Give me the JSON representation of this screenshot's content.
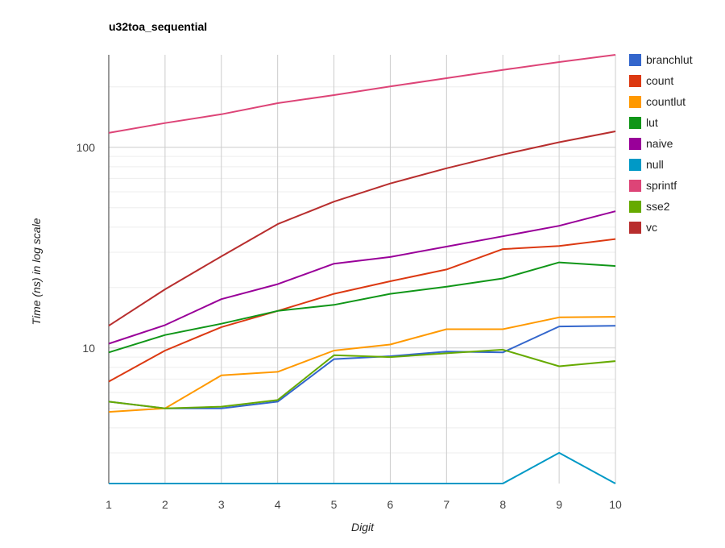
{
  "chart_data": {
    "type": "line",
    "title": "u32toa_sequential",
    "xlabel": "Digit",
    "ylabel": "Time (ns) in log scale",
    "yscale": "log",
    "ylim": [
      2.11,
      289
    ],
    "xlim": [
      1,
      10
    ],
    "x": [
      1,
      2,
      3,
      4,
      5,
      6,
      7,
      8,
      9,
      10
    ],
    "y_ticks": [
      10,
      100
    ],
    "y_tick_labels": [
      "10",
      "100"
    ],
    "x_tick_labels": [
      "1",
      "2",
      "3",
      "4",
      "5",
      "6",
      "7",
      "8",
      "9",
      "10"
    ],
    "grid": true,
    "legend_position": "right",
    "series": [
      {
        "name": "branchlut",
        "color": "#3366cc",
        "values": [
          5.4,
          5.0,
          5.0,
          5.4,
          8.8,
          9.1,
          9.6,
          9.5,
          12.8,
          12.9
        ]
      },
      {
        "name": "count",
        "color": "#dc3912",
        "values": [
          6.8,
          9.7,
          12.7,
          15.3,
          18.6,
          21.5,
          24.6,
          31.1,
          32.2,
          34.9
        ]
      },
      {
        "name": "countlut",
        "color": "#ff9900",
        "values": [
          4.8,
          5.0,
          7.3,
          7.6,
          9.7,
          10.4,
          12.4,
          12.4,
          14.2,
          14.3
        ]
      },
      {
        "name": "lut",
        "color": "#109618",
        "values": [
          9.5,
          11.6,
          13.2,
          15.3,
          16.4,
          18.6,
          20.2,
          22.2,
          26.7,
          25.6
        ]
      },
      {
        "name": "naive",
        "color": "#990099",
        "values": [
          10.5,
          13.0,
          17.5,
          20.8,
          26.3,
          28.4,
          32.0,
          36.0,
          40.6,
          48.0
        ]
      },
      {
        "name": "null",
        "color": "#0099c6",
        "values": [
          2.11,
          2.11,
          2.11,
          2.11,
          2.11,
          2.11,
          2.11,
          2.11,
          3.0,
          2.11
        ]
      },
      {
        "name": "sprintf",
        "color": "#dd4477",
        "values": [
          118,
          132,
          146,
          166,
          182,
          201,
          221,
          243,
          266,
          289
        ]
      },
      {
        "name": "sse2",
        "color": "#66aa00",
        "values": [
          5.4,
          5.0,
          5.1,
          5.5,
          9.2,
          9.0,
          9.4,
          9.8,
          8.1,
          8.6
        ]
      },
      {
        "name": "vc",
        "color": "#b82e2e",
        "values": [
          12.9,
          19.6,
          28.6,
          41.4,
          53.6,
          66.0,
          78.6,
          92.0,
          106,
          120
        ]
      }
    ]
  }
}
